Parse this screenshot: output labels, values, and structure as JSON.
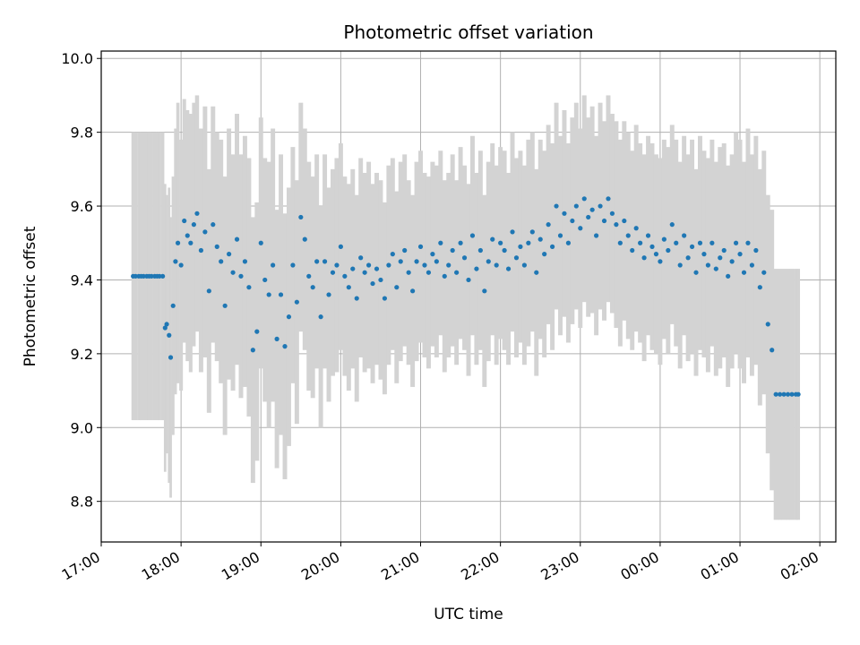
{
  "chart_data": {
    "type": "scatter",
    "title": "Photometric offset variation",
    "xlabel": "UTC time",
    "ylabel": "Photometric offset",
    "x_unit": "UTC hours (continuing past midnight)",
    "xlim": [
      17.0,
      26.2
    ],
    "ylim": [
      8.69,
      10.02
    ],
    "grid": true,
    "x_ticks": [
      {
        "value": 17,
        "label": "17:00"
      },
      {
        "value": 18,
        "label": "18:00"
      },
      {
        "value": 19,
        "label": "19:00"
      },
      {
        "value": 20,
        "label": "20:00"
      },
      {
        "value": 21,
        "label": "21:00"
      },
      {
        "value": 22,
        "label": "22:00"
      },
      {
        "value": 23,
        "label": "23:00"
      },
      {
        "value": 24,
        "label": "00:00"
      },
      {
        "value": 25,
        "label": "01:00"
      },
      {
        "value": 26,
        "label": "02:00"
      }
    ],
    "y_ticks": [
      {
        "value": 8.8,
        "label": "8.8"
      },
      {
        "value": 9.0,
        "label": "9.0"
      },
      {
        "value": 9.2,
        "label": "9.2"
      },
      {
        "value": 9.4,
        "label": "9.4"
      },
      {
        "value": 9.6,
        "label": "9.6"
      },
      {
        "value": 9.8,
        "label": "9.8"
      },
      {
        "value": 10.0,
        "label": "10.0"
      }
    ],
    "error_band_color": "#d3d3d3",
    "point_color": "#1f77b4",
    "series": [
      {
        "x": [
          17.4,
          17.43,
          17.47,
          17.5,
          17.53,
          17.57,
          17.6,
          17.63,
          17.67,
          17.7,
          17.73,
          17.77,
          17.8,
          17.82,
          17.85,
          17.87,
          17.9,
          17.93,
          17.96,
          18.0,
          18.04,
          18.08,
          18.12,
          18.16,
          18.2,
          18.25,
          18.3,
          18.35,
          18.4,
          18.45,
          18.5,
          18.55,
          18.6,
          18.65,
          18.7,
          18.75,
          18.8,
          18.85,
          18.9,
          18.95,
          19.0,
          19.05,
          19.1,
          19.15,
          19.2,
          19.25,
          19.3,
          19.35,
          19.4,
          19.45,
          19.5,
          19.55,
          19.6,
          19.65,
          19.7,
          19.75,
          19.8,
          19.85,
          19.9,
          19.95,
          20.0,
          20.05,
          20.1,
          20.15,
          20.2,
          20.25,
          20.3,
          20.35,
          20.4,
          20.45,
          20.5,
          20.55,
          20.6,
          20.65,
          20.7,
          20.75,
          20.8,
          20.85,
          20.9,
          20.95,
          21.0,
          21.05,
          21.1,
          21.15,
          21.2,
          21.25,
          21.3,
          21.35,
          21.4,
          21.45,
          21.5,
          21.55,
          21.6,
          21.65,
          21.7,
          21.75,
          21.8,
          21.85,
          21.9,
          21.95,
          22.0,
          22.05,
          22.1,
          22.15,
          22.2,
          22.25,
          22.3,
          22.35,
          22.4,
          22.45,
          22.5,
          22.55,
          22.6,
          22.65,
          22.7,
          22.75,
          22.8,
          22.85,
          22.9,
          22.95,
          23.0,
          23.05,
          23.1,
          23.15,
          23.2,
          23.25,
          23.3,
          23.35,
          23.4,
          23.45,
          23.5,
          23.55,
          23.6,
          23.65,
          23.7,
          23.75,
          23.8,
          23.85,
          23.9,
          23.95,
          24.0,
          24.05,
          24.1,
          24.15,
          24.2,
          24.25,
          24.3,
          24.35,
          24.4,
          24.45,
          24.5,
          24.55,
          24.6,
          24.65,
          24.7,
          24.75,
          24.8,
          24.85,
          24.9,
          24.95,
          25.0,
          25.05,
          25.1,
          25.15,
          25.2,
          25.25,
          25.3,
          25.35,
          25.4,
          25.45,
          25.5,
          25.55,
          25.6,
          25.65,
          25.7,
          25.73
        ],
        "y": [
          9.41,
          9.41,
          9.41,
          9.41,
          9.41,
          9.41,
          9.41,
          9.41,
          9.41,
          9.41,
          9.41,
          9.41,
          9.27,
          9.28,
          9.25,
          9.19,
          9.33,
          9.45,
          9.5,
          9.44,
          9.56,
          9.52,
          9.5,
          9.55,
          9.58,
          9.48,
          9.53,
          9.37,
          9.55,
          9.49,
          9.45,
          9.33,
          9.47,
          9.42,
          9.51,
          9.41,
          9.45,
          9.38,
          9.21,
          9.26,
          9.5,
          9.4,
          9.36,
          9.44,
          9.24,
          9.36,
          9.22,
          9.3,
          9.44,
          9.34,
          9.57,
          9.51,
          9.41,
          9.38,
          9.45,
          9.3,
          9.45,
          9.36,
          9.42,
          9.44,
          9.49,
          9.41,
          9.38,
          9.43,
          9.35,
          9.46,
          9.42,
          9.44,
          9.39,
          9.43,
          9.4,
          9.35,
          9.44,
          9.47,
          9.38,
          9.45,
          9.48,
          9.42,
          9.37,
          9.45,
          9.49,
          9.44,
          9.42,
          9.47,
          9.45,
          9.5,
          9.41,
          9.44,
          9.48,
          9.42,
          9.5,
          9.46,
          9.4,
          9.52,
          9.43,
          9.48,
          9.37,
          9.45,
          9.51,
          9.44,
          9.5,
          9.48,
          9.43,
          9.53,
          9.46,
          9.49,
          9.44,
          9.5,
          9.53,
          9.42,
          9.51,
          9.47,
          9.55,
          9.49,
          9.6,
          9.52,
          9.58,
          9.5,
          9.56,
          9.6,
          9.54,
          9.62,
          9.57,
          9.59,
          9.52,
          9.6,
          9.56,
          9.62,
          9.58,
          9.55,
          9.5,
          9.56,
          9.52,
          9.48,
          9.54,
          9.5,
          9.46,
          9.52,
          9.49,
          9.47,
          9.45,
          9.51,
          9.48,
          9.55,
          9.5,
          9.44,
          9.52,
          9.46,
          9.49,
          9.42,
          9.5,
          9.47,
          9.44,
          9.5,
          9.43,
          9.46,
          9.48,
          9.41,
          9.45,
          9.5,
          9.47,
          9.42,
          9.5,
          9.44,
          9.48,
          9.38,
          9.42,
          9.28,
          9.21,
          9.09,
          9.09,
          9.09,
          9.09,
          9.09,
          9.09,
          9.09
        ],
        "err": [
          0.39,
          0.39,
          0.39,
          0.39,
          0.39,
          0.39,
          0.39,
          0.39,
          0.39,
          0.39,
          0.39,
          0.39,
          0.39,
          0.35,
          0.4,
          0.38,
          0.35,
          0.36,
          0.38,
          0.34,
          0.33,
          0.34,
          0.35,
          0.33,
          0.32,
          0.33,
          0.34,
          0.33,
          0.32,
          0.31,
          0.33,
          0.35,
          0.34,
          0.32,
          0.34,
          0.33,
          0.34,
          0.35,
          0.36,
          0.35,
          0.34,
          0.33,
          0.36,
          0.37,
          0.35,
          0.38,
          0.36,
          0.35,
          0.32,
          0.33,
          0.31,
          0.3,
          0.31,
          0.3,
          0.29,
          0.3,
          0.29,
          0.29,
          0.28,
          0.29,
          0.28,
          0.27,
          0.28,
          0.27,
          0.28,
          0.27,
          0.27,
          0.28,
          0.27,
          0.26,
          0.27,
          0.26,
          0.27,
          0.26,
          0.26,
          0.27,
          0.26,
          0.25,
          0.26,
          0.27,
          0.26,
          0.25,
          0.26,
          0.25,
          0.26,
          0.25,
          0.26,
          0.25,
          0.26,
          0.25,
          0.26,
          0.25,
          0.26,
          0.27,
          0.26,
          0.27,
          0.26,
          0.27,
          0.26,
          0.27,
          0.26,
          0.27,
          0.26,
          0.27,
          0.27,
          0.26,
          0.27,
          0.28,
          0.27,
          0.28,
          0.27,
          0.28,
          0.27,
          0.28,
          0.28,
          0.27,
          0.28,
          0.27,
          0.28,
          0.28,
          0.27,
          0.28,
          0.27,
          0.28,
          0.27,
          0.28,
          0.27,
          0.28,
          0.27,
          0.28,
          0.28,
          0.27,
          0.28,
          0.27,
          0.28,
          0.27,
          0.28,
          0.27,
          0.28,
          0.27,
          0.28,
          0.27,
          0.28,
          0.27,
          0.28,
          0.28,
          0.27,
          0.28,
          0.29,
          0.28,
          0.29,
          0.28,
          0.29,
          0.28,
          0.29,
          0.3,
          0.29,
          0.3,
          0.29,
          0.3,
          0.31,
          0.3,
          0.31,
          0.3,
          0.31,
          0.32,
          0.33,
          0.35,
          0.38,
          0.34,
          0.34,
          0.34,
          0.34,
          0.34,
          0.34,
          0.34
        ]
      }
    ]
  }
}
